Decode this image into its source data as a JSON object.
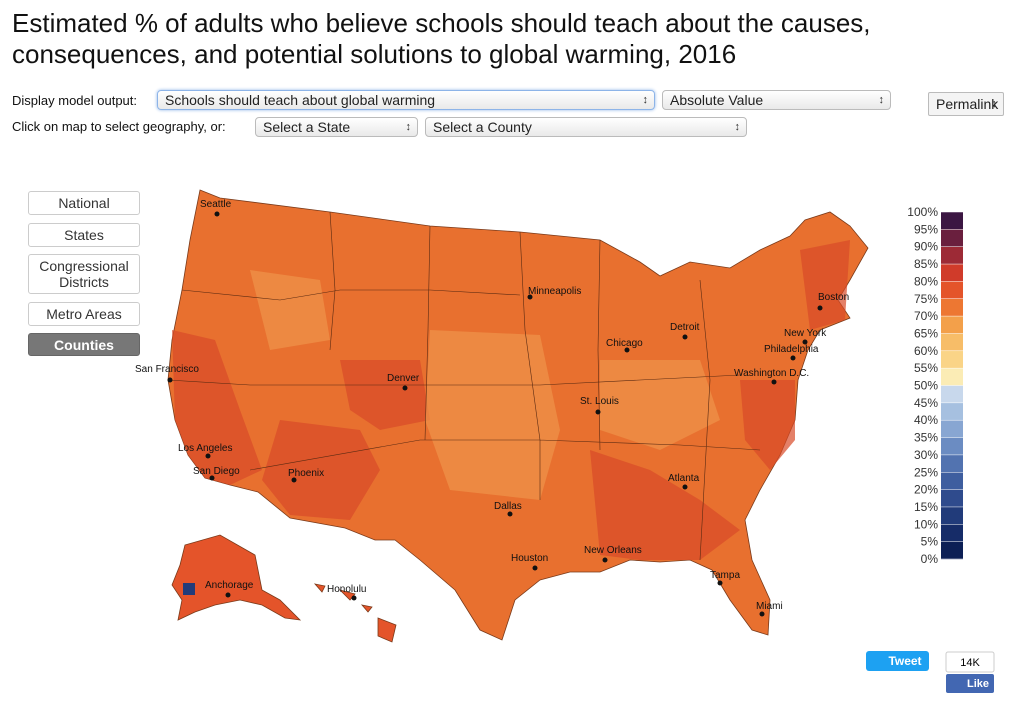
{
  "header": {
    "title": "Estimated % of adults who believe schools should teach about the causes, consequences, and potential solutions to global warming, 2016"
  },
  "controls": {
    "output_label": "Display model output:",
    "output_select": "Schools should teach about global warming",
    "value_select": "Absolute Value",
    "permalink": "Permalink",
    "geo_label": "Click on map to select geography, or:",
    "state_select": "Select a State",
    "county_select": "Select a County"
  },
  "geography_buttons": [
    "National",
    "States",
    "Congressional Districts",
    "Metro Areas",
    "Counties"
  ],
  "cities": [
    "Seattle",
    "Minneapolis",
    "Boston",
    "Detroit",
    "Chicago",
    "New York",
    "Philadelphia",
    "Washington D.C.",
    "San Francisco",
    "Denver",
    "St. Louis",
    "Los Angeles",
    "San Diego",
    "Phoenix",
    "Atlanta",
    "Dallas",
    "New Orleans",
    "Houston",
    "Tampa",
    "Miami",
    "Anchorage",
    "Honolulu"
  ],
  "legend": {
    "labels": [
      "100%",
      "95%",
      "90%",
      "85%",
      "80%",
      "75%",
      "70%",
      "65%",
      "60%",
      "55%",
      "50%",
      "45%",
      "40%",
      "35%",
      "30%",
      "25%",
      "20%",
      "15%",
      "10%",
      "5%",
      "0%"
    ],
    "colors": [
      "#3b1642",
      "#6a1f3e",
      "#9d2a36",
      "#d03b2a",
      "#e4542a",
      "#ed7732",
      "#f3a04a",
      "#f7bd68",
      "#fad487",
      "#fbecb5",
      "#c8d8ec",
      "#a6c0e0",
      "#88a6d2",
      "#6b8cc2",
      "#5273b0",
      "#3e5e9f",
      "#2f4b8d",
      "#213b7a",
      "#162c68",
      "#0c1f55"
    ]
  },
  "social": {
    "tweet": "Tweet",
    "like_count": "14K",
    "like": "Like"
  }
}
